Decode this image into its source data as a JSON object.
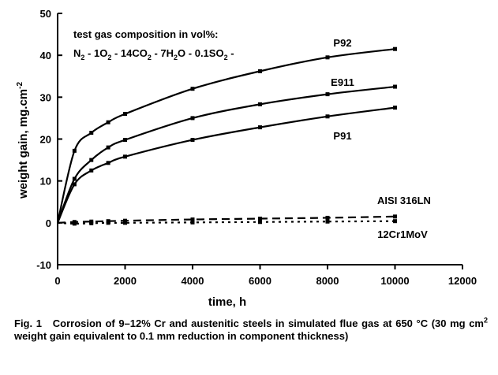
{
  "chart_data": {
    "type": "line",
    "xlabel": "time, h",
    "ylabel": "weight gain, mg.cm",
    "ylabel_sup": "-2",
    "xlim": [
      0,
      12000
    ],
    "ylim": [
      -10,
      50
    ],
    "x_ticks": [
      0,
      2000,
      4000,
      6000,
      8000,
      10000,
      12000
    ],
    "y_ticks": [
      -10,
      0,
      10,
      20,
      30,
      40,
      50
    ],
    "grid": false,
    "legend": "labels placed next to each curve",
    "annotation": {
      "line1": "test gas composition in vol%:",
      "line2_parts": [
        {
          "t": "N"
        },
        {
          "t": "2",
          "sub": true
        },
        {
          "t": " - 1O"
        },
        {
          "t": "2",
          "sub": true
        },
        {
          "t": " - 14CO"
        },
        {
          "t": "2",
          "sub": true
        },
        {
          "t": " - 7H"
        },
        {
          "t": "2",
          "sub": true
        },
        {
          "t": "O - 0.1SO"
        },
        {
          "t": "2",
          "sub": true
        },
        {
          "t": " -"
        }
      ]
    },
    "series": [
      {
        "name": "P92",
        "style": "solid",
        "x": [
          0,
          500,
          1000,
          1500,
          2000,
          4000,
          6000,
          8000,
          10000
        ],
        "y": [
          0,
          17.2,
          21.5,
          24.0,
          26.0,
          32.0,
          36.2,
          39.5,
          41.5
        ]
      },
      {
        "name": "E911",
        "style": "solid",
        "x": [
          0,
          500,
          1000,
          1500,
          2000,
          4000,
          6000,
          8000,
          10000
        ],
        "y": [
          0,
          10.5,
          15.0,
          18.0,
          19.8,
          25.0,
          28.3,
          30.7,
          32.5
        ]
      },
      {
        "name": "P91",
        "style": "solid",
        "x": [
          0,
          500,
          1000,
          1500,
          2000,
          4000,
          6000,
          8000,
          10000
        ],
        "y": [
          0,
          9.2,
          12.5,
          14.3,
          15.8,
          19.8,
          22.8,
          25.4,
          27.5
        ]
      },
      {
        "name": "AISI 316LN",
        "style": "dashed",
        "x": [
          0,
          500,
          1000,
          1500,
          2000,
          4000,
          6000,
          8000,
          10000
        ],
        "y": [
          0,
          0.2,
          0.3,
          0.4,
          0.5,
          0.8,
          1.0,
          1.2,
          1.5
        ]
      },
      {
        "name": "12Cr1MoV",
        "style": "dotted",
        "x": [
          0,
          500,
          1000,
          1500,
          2000,
          4000,
          6000,
          8000,
          10000
        ],
        "y": [
          0,
          -0.2,
          -0.1,
          0.0,
          0.0,
          0.1,
          0.2,
          0.3,
          0.4
        ]
      }
    ]
  },
  "caption": {
    "fig": "Fig. 1",
    "part1": "Corrosion of 9–12% Cr and austenitic steels in simulated flue gas at 650 °C (30 mg cm",
    "sup": "2",
    "part2": " weight gain equivalent to 0.1 mm reduction in component thickness)"
  }
}
